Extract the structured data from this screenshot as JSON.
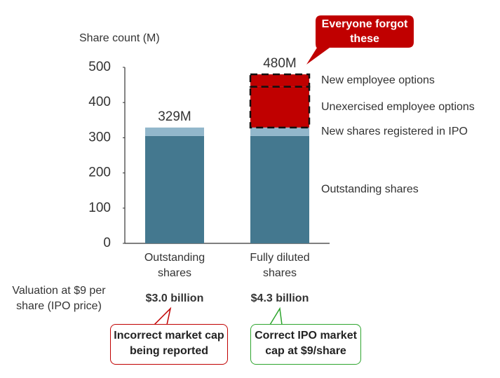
{
  "chart_data": {
    "type": "stacked-bar",
    "ylabel": "Share count (M)",
    "categories": [
      "Outstanding shares",
      "Fully diluted shares"
    ],
    "series": [
      {
        "name": "Outstanding shares",
        "color": "#44788f",
        "values": [
          305,
          305
        ]
      },
      {
        "name": "New shares registered in IPO",
        "color": "#92b7cb",
        "values": [
          24,
          24
        ]
      },
      {
        "name": "Unexercised employee options",
        "color": "#c00000",
        "border": "dashed",
        "values": [
          null,
          116
        ]
      },
      {
        "name": "New employee options",
        "color": "#c00000",
        "border": "dashed",
        "values": [
          null,
          35
        ]
      }
    ],
    "totals": {
      "values": [
        329,
        480
      ],
      "value_labels": [
        "329M",
        "480M"
      ]
    },
    "ylim": [
      0,
      500
    ],
    "yticks": [
      0,
      100,
      200,
      300,
      400,
      500
    ],
    "annotation": "Everyone forgot these",
    "valuation": {
      "label": "Valuation at $9 per share (IPO price)",
      "values": [
        "$3.0 billion",
        "$4.3 billion"
      ]
    },
    "callouts": [
      "Incorrect market cap being reported",
      "Correct IPO market cap at $9/share"
    ]
  }
}
